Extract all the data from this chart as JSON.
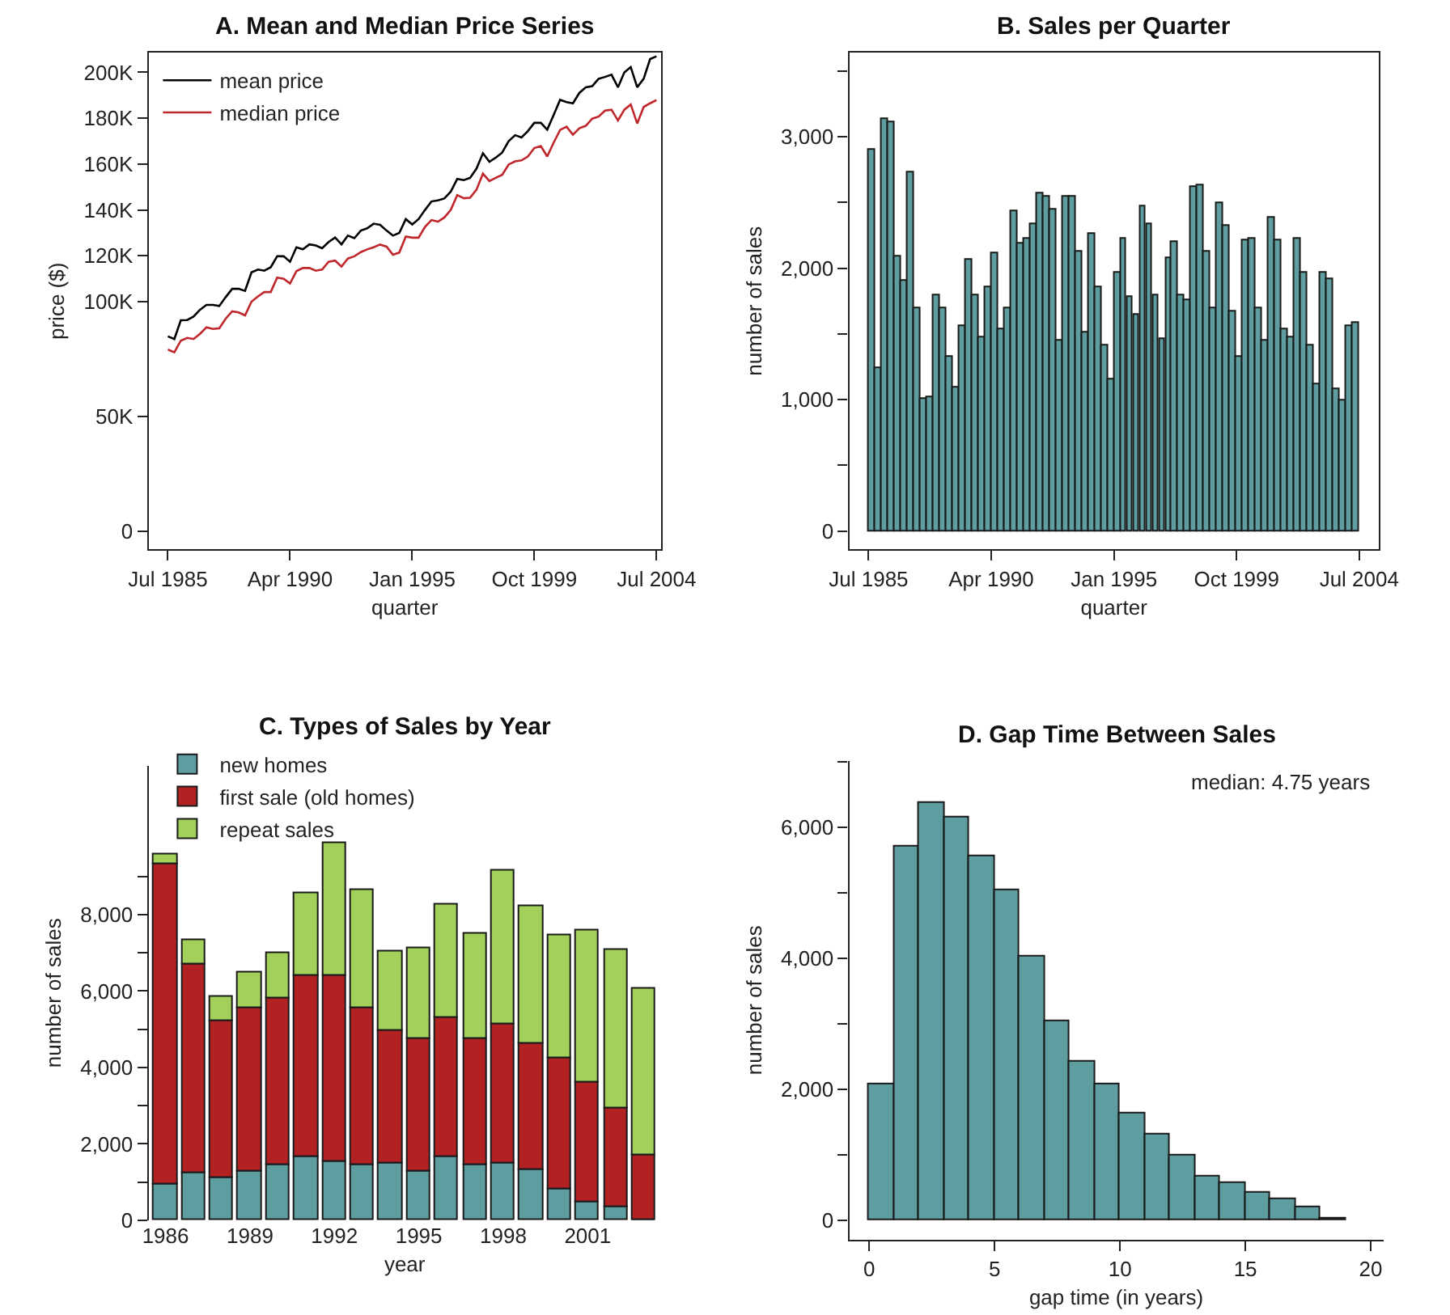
{
  "chart_data": [
    {
      "type": "line",
      "title": "A. Mean and Median Price Series",
      "xlabel": "quarter",
      "ylabel": "price ($)",
      "legend": "top left",
      "marker": "none",
      "line_style": "solid",
      "x": [
        "1985-07",
        "1985-10",
        "1986-01",
        "1986-04",
        "1986-07",
        "1986-10",
        "1987-01",
        "1987-04",
        "1987-07",
        "1987-10",
        "1988-01",
        "1988-04",
        "1988-07",
        "1988-10",
        "1989-01",
        "1989-04",
        "1989-07",
        "1989-10",
        "1990-01",
        "1990-04",
        "1990-07",
        "1990-10",
        "1991-01",
        "1991-04",
        "1991-07",
        "1991-10",
        "1992-01",
        "1992-04",
        "1992-07",
        "1992-10",
        "1993-01",
        "1993-04",
        "1993-07",
        "1993-10",
        "1994-01",
        "1994-04",
        "1994-07",
        "1994-10",
        "1995-01",
        "1995-04",
        "1995-07",
        "1995-10",
        "1996-01",
        "1996-04",
        "1996-07",
        "1996-10",
        "1997-01",
        "1997-04",
        "1997-07",
        "1997-10",
        "1998-01",
        "1998-04",
        "1998-07",
        "1998-10",
        "1999-01",
        "1999-04",
        "1999-07",
        "1999-10",
        "2000-01",
        "2000-04",
        "2000-07",
        "2000-10",
        "2001-01",
        "2001-04",
        "2001-07",
        "2001-10",
        "2002-01",
        "2002-04",
        "2002-07",
        "2002-10",
        "2003-01",
        "2003-04",
        "2003-07",
        "2003-10",
        "2004-01",
        "2004-04",
        "2004-07"
      ],
      "series": [
        {
          "name": "mean price",
          "color": "#000000",
          "values": [
            84900,
            83700,
            91900,
            92000,
            93500,
            96500,
            98600,
            98600,
            98100,
            102000,
            105600,
            105600,
            104700,
            112800,
            114000,
            113500,
            115000,
            119800,
            119800,
            117400,
            123700,
            122800,
            125000,
            124500,
            123300,
            126000,
            128000,
            125000,
            128800,
            127700,
            131000,
            132000,
            134000,
            133500,
            131000,
            128800,
            130000,
            136000,
            133700,
            136000,
            140000,
            143700,
            144200,
            145000,
            148000,
            153500,
            153000,
            154000,
            158000,
            164700,
            161000,
            162800,
            165000,
            170000,
            172600,
            171600,
            174400,
            178000,
            178000,
            175000,
            181400,
            188000,
            187000,
            186500,
            191000,
            193500,
            194000,
            197200,
            198000,
            199000,
            193500,
            200000,
            202300,
            193500,
            197200,
            205800,
            207000
          ]
        },
        {
          "name": "median price",
          "color": "#c0272d",
          "values": [
            79100,
            77900,
            83000,
            84200,
            83700,
            86000,
            88800,
            88100,
            88400,
            92600,
            95800,
            95300,
            94000,
            100000,
            102300,
            104200,
            104200,
            110500,
            110000,
            107900,
            113300,
            114700,
            114700,
            113500,
            114000,
            117400,
            117900,
            115300,
            118800,
            119800,
            121600,
            122800,
            123700,
            124900,
            124000,
            120500,
            121400,
            128400,
            127900,
            127900,
            132600,
            135600,
            134900,
            136700,
            140000,
            146500,
            145100,
            145300,
            148800,
            155800,
            152600,
            154000,
            155300,
            159800,
            161200,
            161600,
            163300,
            167000,
            167900,
            163300,
            169300,
            174900,
            176300,
            172800,
            175600,
            176700,
            179800,
            180700,
            183300,
            183700,
            179000,
            183700,
            186000,
            177700,
            184900,
            186500,
            187900
          ]
        }
      ],
      "xlim": [
        "1984-10",
        "2004-09"
      ],
      "ylim": [
        -8000,
        208500
      ],
      "xticks": [
        {
          "value": "1985-07",
          "label": "Jul 1985"
        },
        {
          "value": "1990-04",
          "label": "Apr 1990"
        },
        {
          "value": "1995-01",
          "label": "Jan 1995"
        },
        {
          "value": "1999-10",
          "label": "Oct 1999"
        },
        {
          "value": "2004-07",
          "label": "Jul 2004"
        }
      ],
      "yticks": [
        {
          "value": 0,
          "label": "0"
        },
        {
          "value": 50000,
          "label": "50K"
        },
        {
          "value": 100000,
          "label": "100K"
        },
        {
          "value": 120000,
          "label": "120K"
        },
        {
          "value": 140000,
          "label": "140K"
        },
        {
          "value": 160000,
          "label": "160K"
        },
        {
          "value": 180000,
          "label": "180K"
        },
        {
          "value": 200000,
          "label": "200K"
        }
      ]
    },
    {
      "type": "bar",
      "title": "B. Sales per Quarter",
      "xlabel": "quarter",
      "ylabel": "number of sales",
      "color": "#5f9ea0",
      "x": [
        "1985-07",
        "1985-10",
        "1986-01",
        "1986-04",
        "1986-07",
        "1986-10",
        "1987-01",
        "1987-04",
        "1987-07",
        "1987-10",
        "1988-01",
        "1988-04",
        "1988-07",
        "1988-10",
        "1989-01",
        "1989-04",
        "1989-07",
        "1989-10",
        "1990-01",
        "1990-04",
        "1990-07",
        "1990-10",
        "1991-01",
        "1991-04",
        "1991-07",
        "1991-10",
        "1992-01",
        "1992-04",
        "1992-07",
        "1992-10",
        "1993-01",
        "1993-04",
        "1993-07",
        "1993-10",
        "1994-01",
        "1994-04",
        "1994-07",
        "1994-10",
        "1995-01",
        "1995-04",
        "1995-07",
        "1995-10",
        "1996-01",
        "1996-04",
        "1996-07",
        "1996-10",
        "1997-01",
        "1997-04",
        "1997-07",
        "1997-10",
        "1998-01",
        "1998-04",
        "1998-07",
        "1998-10",
        "1999-01",
        "1999-04",
        "1999-07",
        "1999-10",
        "2000-01",
        "2000-04",
        "2000-07",
        "2000-10",
        "2001-01",
        "2001-04",
        "2001-07",
        "2001-10",
        "2002-01",
        "2002-04",
        "2002-07",
        "2002-10",
        "2003-01",
        "2003-04",
        "2003-07",
        "2003-10",
        "2004-01",
        "2004-04"
      ],
      "values": [
        2900,
        1240,
        3130,
        3110,
        2090,
        1900,
        2730,
        1700,
        1010,
        1020,
        1790,
        1700,
        1320,
        1090,
        1560,
        2060,
        1790,
        1470,
        1860,
        2110,
        1530,
        1690,
        2430,
        2190,
        2230,
        2340,
        2570,
        2540,
        2440,
        1450,
        2540,
        2540,
        2130,
        1510,
        2260,
        1860,
        1410,
        1150,
        1970,
        2230,
        1780,
        1640,
        2470,
        2340,
        1790,
        1460,
        2080,
        2200,
        1790,
        1750,
        2620,
        2630,
        2130,
        1690,
        2500,
        2320,
        1670,
        1320,
        2210,
        2220,
        1690,
        1450,
        2380,
        2210,
        1540,
        1470,
        2230,
        1970,
        1410,
        1120,
        1960,
        1910,
        1080,
        990,
        1560,
        1580
      ],
      "xlim": [
        "1984-10",
        "2005-04"
      ],
      "ylim": [
        -140,
        3640
      ],
      "xticks": [
        {
          "value": "1985-07",
          "label": "Jul 1985"
        },
        {
          "value": "1990-04",
          "label": "Apr 1990"
        },
        {
          "value": "1995-01",
          "label": "Jan 1995"
        },
        {
          "value": "1999-10",
          "label": "Oct 1999"
        },
        {
          "value": "2004-07",
          "label": "Jul 2004"
        }
      ],
      "yticks": [
        {
          "value": 0,
          "label": "0"
        },
        {
          "value": 500,
          "label": null
        },
        {
          "value": 1000,
          "label": "1,000"
        },
        {
          "value": 1500,
          "label": null
        },
        {
          "value": 2000,
          "label": "2,000"
        },
        {
          "value": 2500,
          "label": null
        },
        {
          "value": 3000,
          "label": "3,000"
        },
        {
          "value": 3500,
          "label": null
        }
      ]
    },
    {
      "type": "bar",
      "stacked": true,
      "title": "C. Types of Sales by Year",
      "xlabel": "year",
      "ylabel": "number of sales",
      "legend": "top left",
      "categories": [
        "1986",
        null,
        null,
        "1989",
        null,
        null,
        "1992",
        null,
        null,
        "1995",
        null,
        null,
        "1998",
        null,
        null,
        "2001",
        null,
        null
      ],
      "series": [
        {
          "name": "new homes",
          "color": "#5f9ea0",
          "values": [
            940,
            1220,
            1130,
            1290,
            1430,
            1680,
            1520,
            1430,
            1470,
            1260,
            1650,
            1430,
            1470,
            1310,
            800,
            490,
            350,
            30
          ]
        },
        {
          "name": "first sale (old homes)",
          "color": "#b22222",
          "values": [
            8390,
            5490,
            4100,
            4260,
            4360,
            4710,
            4900,
            4110,
            3500,
            3480,
            3650,
            3310,
            3660,
            3320,
            3450,
            3120,
            2590,
            1690
          ]
        },
        {
          "name": "repeat sales",
          "color": "#a2d05a",
          "values": [
            240,
            640,
            620,
            940,
            1200,
            2170,
            3470,
            3120,
            2080,
            2390,
            2940,
            2780,
            4000,
            3570,
            3190,
            3990,
            4150,
            4350
          ]
        }
      ],
      "ylim": [
        0,
        11900
      ],
      "yticks": [
        {
          "value": 0,
          "label": "0"
        },
        {
          "value": 1000,
          "label": null
        },
        {
          "value": 2000,
          "label": "2,000"
        },
        {
          "value": 3000,
          "label": null
        },
        {
          "value": 4000,
          "label": "4,000"
        },
        {
          "value": 5000,
          "label": null
        },
        {
          "value": 6000,
          "label": "6,000"
        },
        {
          "value": 7000,
          "label": null
        },
        {
          "value": 8000,
          "label": "8,000"
        },
        {
          "value": 9000,
          "label": null
        }
      ]
    },
    {
      "type": "histogram",
      "title": "D. Gap Time Between Sales",
      "xlabel": "gap time (in years)",
      "ylabel": "number of sales",
      "color": "#5f9ea0",
      "annotations": [
        "median: 4.75 years"
      ],
      "bins": [
        0,
        1,
        2,
        3,
        4,
        5,
        6,
        7,
        8,
        9,
        10,
        11,
        12,
        13,
        14,
        15,
        16,
        17,
        18,
        19
      ],
      "values": [
        2080,
        5710,
        6370,
        6160,
        5570,
        5050,
        4040,
        3050,
        2430,
        2070,
        1640,
        1310,
        1000,
        670,
        570,
        420,
        330,
        200,
        40
      ],
      "xlim": [
        -0.8,
        20.5
      ],
      "ylim": [
        -290,
        7020
      ],
      "xticks": [
        0,
        5,
        10,
        15,
        20
      ],
      "yticks": [
        {
          "value": 0,
          "label": "0"
        },
        {
          "value": 1000,
          "label": null
        },
        {
          "value": 2000,
          "label": "2,000"
        },
        {
          "value": 3000,
          "label": null
        },
        {
          "value": 4000,
          "label": "4,000"
        },
        {
          "value": 5000,
          "label": null
        },
        {
          "value": 6000,
          "label": "6,000"
        },
        {
          "value": 7000,
          "label": null
        }
      ]
    }
  ]
}
